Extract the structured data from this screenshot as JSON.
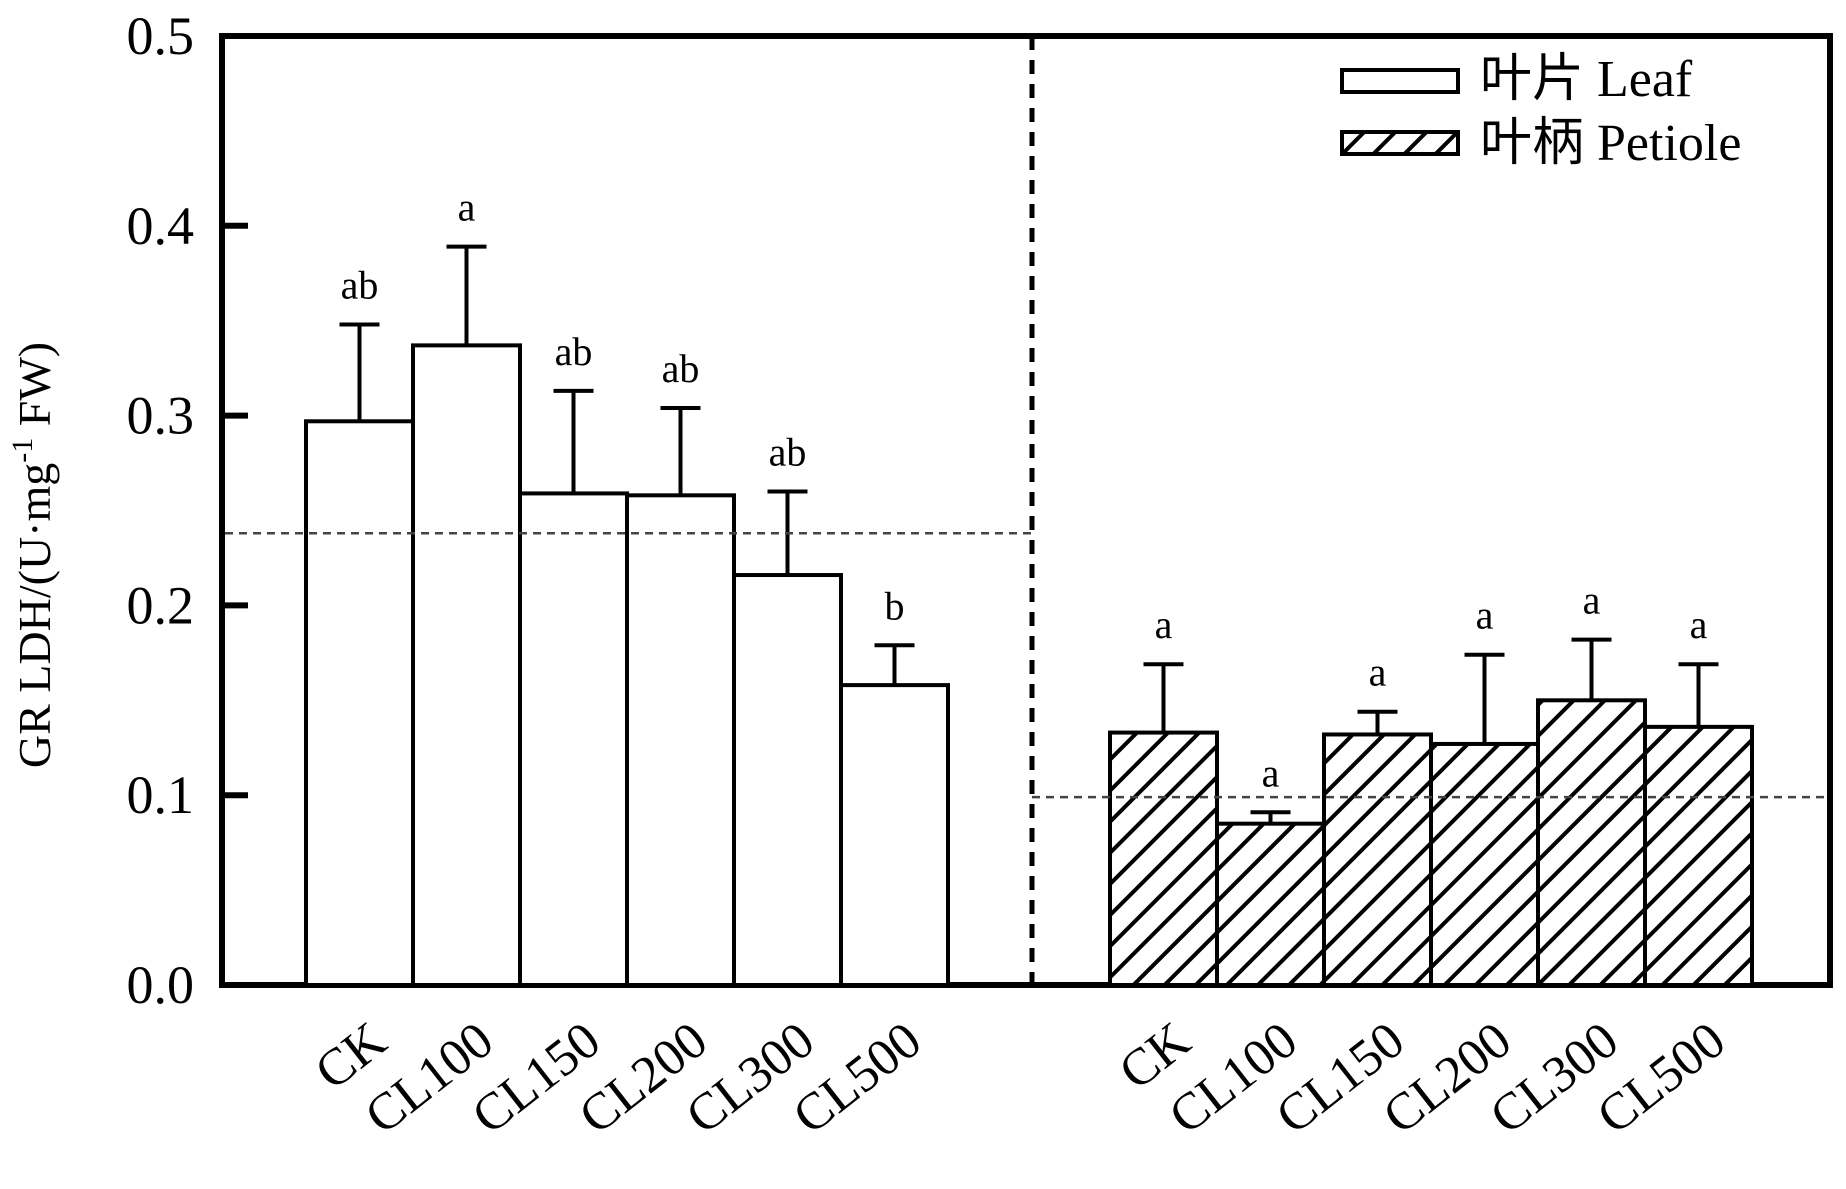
{
  "chart_data": {
    "type": "bar",
    "ylabel": "GR LDH/(U·mg",
    "ylabel_sup": "-1",
    "ylabel_tail": " FW)",
    "ylim": [
      0.0,
      0.5
    ],
    "yticks": [
      "0.0",
      "0.1",
      "0.2",
      "0.3",
      "0.4",
      "0.5"
    ],
    "ytick_values": [
      0.0,
      0.1,
      0.2,
      0.3,
      0.4,
      0.5
    ],
    "legend": [
      {
        "label": "叶片 Leaf",
        "fill": "plain"
      },
      {
        "label": "叶柄 Petiole",
        "fill": "hatched"
      }
    ],
    "legend_position": "top-right",
    "groups": [
      {
        "series": "叶片 Leaf",
        "fill": "plain",
        "categories": [
          "CK",
          "CL100",
          "CL150",
          "CL200",
          "CL300",
          "CL500"
        ],
        "values": [
          0.297,
          0.337,
          0.259,
          0.258,
          0.216,
          0.158
        ],
        "errors": [
          0.051,
          0.052,
          0.054,
          0.046,
          0.044,
          0.021
        ],
        "significance": [
          "ab",
          "a",
          "ab",
          "ab",
          "ab",
          "b"
        ],
        "reference_line": 0.238
      },
      {
        "series": "叶柄 Petiole",
        "fill": "hatched",
        "categories": [
          "CK",
          "CL100",
          "CL150",
          "CL200",
          "CL300",
          "CL500"
        ],
        "values": [
          0.133,
          0.085,
          0.132,
          0.127,
          0.15,
          0.136
        ],
        "errors": [
          0.036,
          0.006,
          0.012,
          0.047,
          0.032,
          0.033
        ],
        "significance": [
          "a",
          "a",
          "a",
          "a",
          "a",
          "a"
        ],
        "reference_line": 0.099
      }
    ],
    "grid": false
  },
  "colors": {
    "axis": "#000000",
    "bar_fill": "#ffffff",
    "hatch": "#000000",
    "reference_line": "#444444"
  }
}
